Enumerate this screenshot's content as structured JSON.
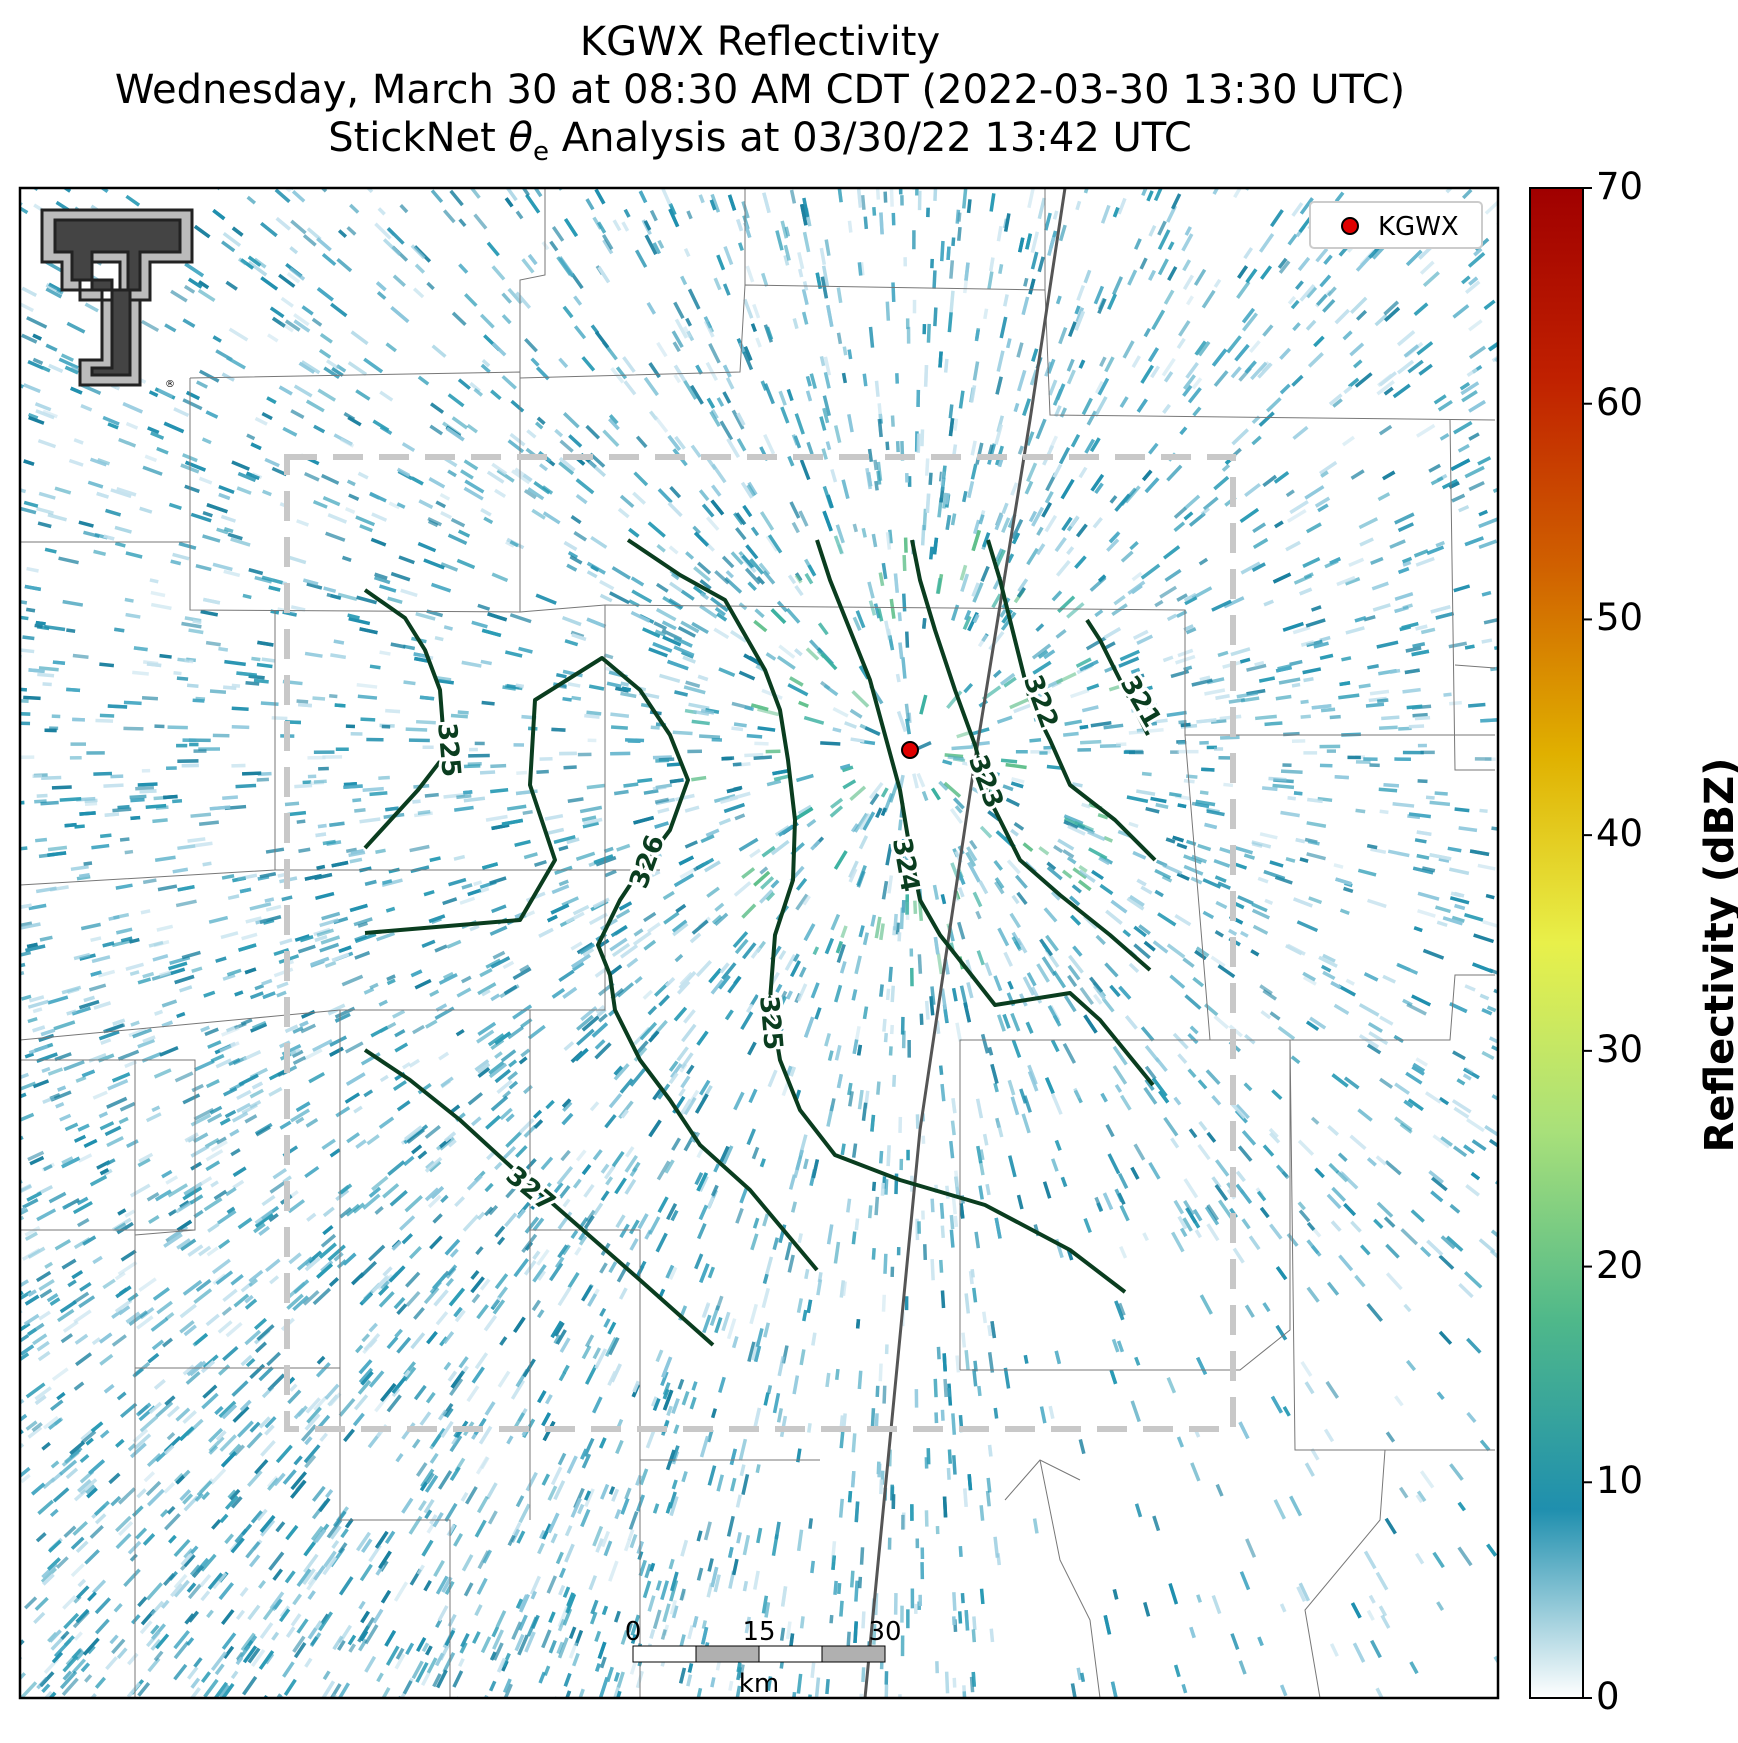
{
  "title": {
    "line1": "KGWX Reflectivity",
    "line2": "Wednesday, March 30 at 08:30 AM CDT (2022-03-30 13:30 UTC)",
    "line3_prefix": "StickNet ",
    "line3_symbol": "θ",
    "line3_subscript": "e",
    "line3_suffix": " Analysis at 03/30/22 13:42 UTC"
  },
  "legend": {
    "marker_color": "#e00000",
    "label": "KGWX"
  },
  "colorbar": {
    "label": "Reflectivity (dBZ)",
    "ticks": [
      "0",
      "10",
      "20",
      "30",
      "40",
      "50",
      "60",
      "70"
    ],
    "min": 0,
    "max": 70,
    "colors": [
      "#ffffff",
      "#1f8fae",
      "#4fb88a",
      "#a8e07a",
      "#e8f04a",
      "#e0b000",
      "#d06000",
      "#c02000",
      "#a00000"
    ]
  },
  "scalebar": {
    "ticks": [
      "0",
      "15",
      "30"
    ],
    "unit": "km"
  },
  "contours": {
    "color": "#0a3d1f",
    "labels": [
      "321",
      "322",
      "323",
      "324",
      "325",
      "325",
      "326",
      "327"
    ]
  },
  "radar_site": {
    "name": "KGWX",
    "color": "#e00000"
  },
  "logo": {
    "name": "Texas Tech double-T logo"
  }
}
